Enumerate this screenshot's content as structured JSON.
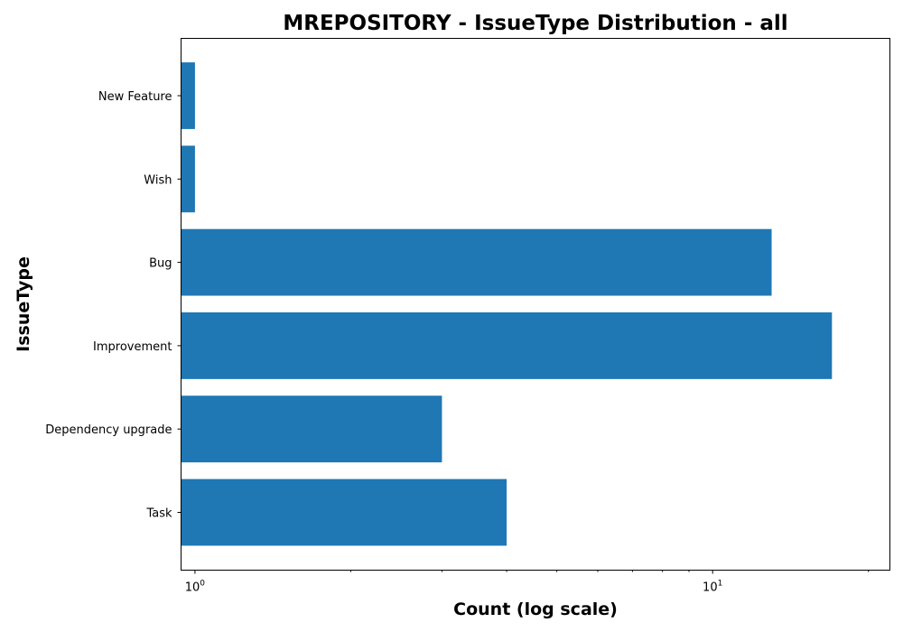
{
  "chart_data": {
    "type": "bar",
    "orientation": "horizontal",
    "title": "MREPOSITORY - IssueType Distribution - all",
    "xlabel": "Count (log scale)",
    "ylabel": "IssueType",
    "x_scale": "log",
    "xlim": [
      0.94,
      22
    ],
    "categories": [
      "Task",
      "Dependency upgrade",
      "Improvement",
      "Bug",
      "Wish",
      "New Feature"
    ],
    "values": [
      4,
      3,
      17,
      13,
      1,
      1
    ],
    "major_ticks": [
      {
        "value": 1,
        "label_base": "10",
        "label_exp": "0"
      },
      {
        "value": 10,
        "label_base": "10",
        "label_exp": "1"
      }
    ],
    "bar_color": "#1f77b4",
    "grid": false,
    "legend": "none"
  }
}
